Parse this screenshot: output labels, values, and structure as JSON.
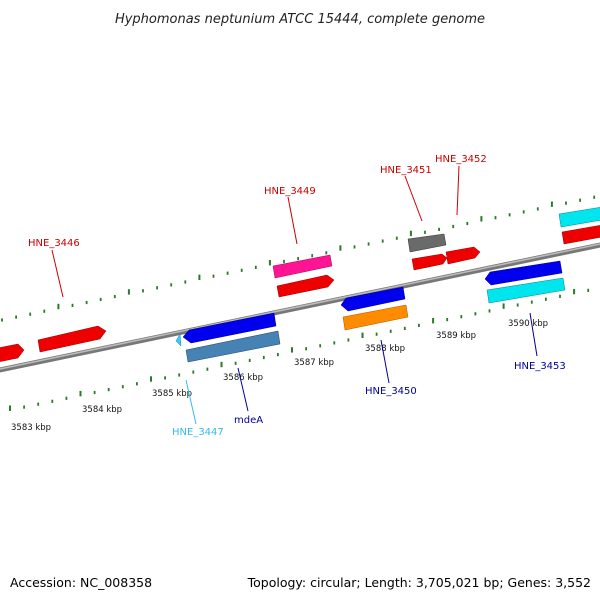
{
  "title": "Hyphomonas neptunium ATCC 15444, complete genome",
  "footer": {
    "accession": "Accession: NC_008358",
    "summary": "Topology: circular; Length: 3,705,021 bp; Genes: 3,552"
  },
  "colors": {
    "backbone": "#8a8a8a",
    "ticks": "#2a7a2a",
    "forward_label": "#cc0000",
    "reverse_label": "#000099"
  },
  "ticks": [
    {
      "label": "3583 kbp"
    },
    {
      "label": "3584 kbp"
    },
    {
      "label": "3585 kbp"
    },
    {
      "label": "3586 kbp"
    },
    {
      "label": "3587 kbp"
    },
    {
      "label": "3588 kbp"
    },
    {
      "label": "3589 kbp"
    },
    {
      "label": "3590 kbp"
    }
  ],
  "genes": [
    {
      "label": "HNE_3446",
      "strand": "+",
      "color": "#ff0000",
      "label_color": "#cc0000"
    },
    {
      "label": "HNE_3449",
      "strand": "+",
      "color": "#ff1493",
      "label_color": "#cc0000"
    },
    {
      "label": "HNE_3451",
      "strand": "+",
      "color": "#666666",
      "label_color": "#cc0000"
    },
    {
      "label": "HNE_3452",
      "strand": "+",
      "color": "#ff0000",
      "label_color": "#cc0000"
    },
    {
      "label": "HNE_3447",
      "strand": "-",
      "color": "#33ccff",
      "label_color": "#33bbee"
    },
    {
      "label": "mdeA",
      "strand": "-",
      "color": "#4682b4",
      "label_color": "#000099"
    },
    {
      "label": "HNE_3450",
      "strand": "-",
      "color": "#ff8c00",
      "label_color": "#000099"
    },
    {
      "label": "HNE_3453",
      "strand": "-",
      "color": "#00e5ee",
      "label_color": "#000099"
    }
  ]
}
